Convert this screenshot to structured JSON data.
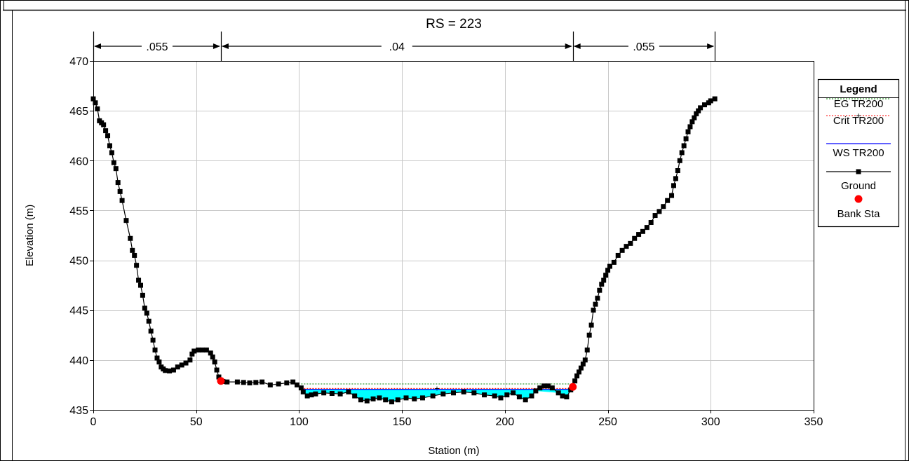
{
  "chart_data": {
    "type": "line",
    "title": "RS = 223",
    "xlabel": "Station (m)",
    "ylabel": "Elevation (m)",
    "xlim": [
      0,
      350
    ],
    "ylim": [
      435,
      470
    ],
    "xticks": [
      0,
      50,
      100,
      150,
      200,
      250,
      300,
      350
    ],
    "yticks": [
      435,
      440,
      445,
      450,
      455,
      460,
      465,
      470
    ],
    "grid": true,
    "legend": {
      "title": "Legend",
      "placement": "right",
      "entries": [
        {
          "label": "EG TR200",
          "color": "#008000",
          "style": "dotted"
        },
        {
          "label": "Crit TR200",
          "color": "#ff0000",
          "style": "dotted-cross"
        },
        {
          "label": "WS TR200",
          "color": "#0000ff",
          "style": "solid"
        },
        {
          "label": "Ground",
          "color": "#000000",
          "style": "line-square"
        },
        {
          "label": "Bank Sta",
          "color": "#ff0000",
          "style": "circle"
        }
      ]
    },
    "mannings_n": [
      {
        "label": ".055",
        "from": 0,
        "to": 62
      },
      {
        "label": ".04",
        "from": 62,
        "to": 233
      },
      {
        "label": ".055",
        "from": 233,
        "to": 302
      }
    ],
    "water_extent": [
      101,
      233
    ],
    "series": [
      {
        "name": "EG TR200",
        "values": [
          [
            101,
            437.6
          ],
          [
            233,
            437.6
          ]
        ]
      },
      {
        "name": "Crit TR200",
        "values": [
          [
            101,
            437.15
          ],
          [
            233,
            437.15
          ]
        ]
      },
      {
        "name": "WS TR200",
        "values": [
          [
            101,
            437.05
          ],
          [
            233,
            437.05
          ]
        ]
      },
      {
        "name": "Ground",
        "values": [
          [
            0,
            466.2
          ],
          [
            1,
            465.8
          ],
          [
            2,
            465.2
          ],
          [
            3,
            464.0
          ],
          [
            4,
            463.8
          ],
          [
            5,
            463.6
          ],
          [
            6,
            463.0
          ],
          [
            7,
            462.5
          ],
          [
            8,
            461.5
          ],
          [
            9,
            460.8
          ],
          [
            10,
            459.8
          ],
          [
            11,
            459.2
          ],
          [
            12,
            457.8
          ],
          [
            13,
            456.9
          ],
          [
            14,
            456.0
          ],
          [
            16,
            454.0
          ],
          [
            18,
            452.2
          ],
          [
            19,
            451.0
          ],
          [
            20,
            450.5
          ],
          [
            21,
            449.5
          ],
          [
            22,
            448.0
          ],
          [
            23,
            447.5
          ],
          [
            24,
            446.5
          ],
          [
            25,
            445.2
          ],
          [
            26,
            444.7
          ],
          [
            27,
            443.9
          ],
          [
            28,
            442.9
          ],
          [
            29,
            442.0
          ],
          [
            30,
            441.0
          ],
          [
            31,
            440.2
          ],
          [
            32,
            439.8
          ],
          [
            33,
            439.3
          ],
          [
            34,
            439.1
          ],
          [
            35,
            438.95
          ],
          [
            37,
            438.9
          ],
          [
            39,
            439.0
          ],
          [
            41,
            439.3
          ],
          [
            43,
            439.5
          ],
          [
            45,
            439.7
          ],
          [
            47,
            440.0
          ],
          [
            48,
            440.6
          ],
          [
            49,
            440.9
          ],
          [
            51,
            441.0
          ],
          [
            53,
            441.0
          ],
          [
            55,
            441.0
          ],
          [
            57,
            440.7
          ],
          [
            58,
            440.3
          ],
          [
            59,
            439.8
          ],
          [
            60,
            439.0
          ],
          [
            61,
            438.3
          ],
          [
            62,
            437.9
          ],
          [
            63,
            437.85
          ],
          [
            65,
            437.8
          ],
          [
            70,
            437.8
          ],
          [
            73,
            437.75
          ],
          [
            76,
            437.7
          ],
          [
            79,
            437.75
          ],
          [
            82,
            437.8
          ],
          [
            86,
            437.5
          ],
          [
            90,
            437.6
          ],
          [
            94,
            437.7
          ],
          [
            97,
            437.8
          ],
          [
            99,
            437.5
          ],
          [
            101,
            437.2
          ],
          [
            102,
            436.8
          ],
          [
            104,
            436.4
          ],
          [
            106,
            436.5
          ],
          [
            108,
            436.6
          ],
          [
            112,
            436.7
          ],
          [
            116,
            436.65
          ],
          [
            120,
            436.6
          ],
          [
            124,
            436.8
          ],
          [
            127,
            436.4
          ],
          [
            130,
            436.0
          ],
          [
            133,
            435.9
          ],
          [
            136,
            436.1
          ],
          [
            139,
            436.2
          ],
          [
            142,
            436.0
          ],
          [
            145,
            435.8
          ],
          [
            148,
            436.0
          ],
          [
            152,
            436.2
          ],
          [
            156,
            436.1
          ],
          [
            160,
            436.2
          ],
          [
            165,
            436.4
          ],
          [
            170,
            436.6
          ],
          [
            175,
            436.7
          ],
          [
            180,
            436.8
          ],
          [
            185,
            436.7
          ],
          [
            190,
            436.5
          ],
          [
            195,
            436.4
          ],
          [
            198,
            436.2
          ],
          [
            201,
            436.5
          ],
          [
            204,
            436.7
          ],
          [
            207,
            436.3
          ],
          [
            210,
            436.0
          ],
          [
            213,
            436.4
          ],
          [
            215,
            436.9
          ],
          [
            217,
            437.2
          ],
          [
            219,
            437.4
          ],
          [
            221,
            437.4
          ],
          [
            223,
            437.2
          ],
          [
            226,
            436.7
          ],
          [
            228,
            436.4
          ],
          [
            230,
            436.3
          ],
          [
            232,
            437.0
          ],
          [
            233,
            437.3
          ],
          [
            234,
            437.9
          ],
          [
            235,
            438.4
          ],
          [
            236,
            438.8
          ],
          [
            237,
            439.2
          ],
          [
            238,
            439.6
          ],
          [
            239,
            440.0
          ],
          [
            240,
            441.0
          ],
          [
            241,
            442.5
          ],
          [
            242,
            443.5
          ],
          [
            243,
            445.0
          ],
          [
            244,
            445.6
          ],
          [
            245,
            446.2
          ],
          [
            246,
            447.0
          ],
          [
            247,
            447.6
          ],
          [
            248,
            448.0
          ],
          [
            249,
            448.5
          ],
          [
            250,
            449.0
          ],
          [
            251,
            449.4
          ],
          [
            253,
            449.8
          ],
          [
            255,
            450.5
          ],
          [
            257,
            451.0
          ],
          [
            259,
            451.4
          ],
          [
            261,
            451.7
          ],
          [
            263,
            452.2
          ],
          [
            265,
            452.6
          ],
          [
            267,
            452.9
          ],
          [
            269,
            453.3
          ],
          [
            271,
            453.8
          ],
          [
            273,
            454.5
          ],
          [
            275,
            454.9
          ],
          [
            277,
            455.4
          ],
          [
            279,
            456.0
          ],
          [
            281,
            456.5
          ],
          [
            282,
            457.5
          ],
          [
            283,
            458.2
          ],
          [
            284,
            459.0
          ],
          [
            285,
            460.0
          ],
          [
            286,
            460.8
          ],
          [
            287,
            461.5
          ],
          [
            288,
            462.2
          ],
          [
            289,
            462.9
          ],
          [
            290,
            463.4
          ],
          [
            291,
            463.9
          ],
          [
            292,
            464.3
          ],
          [
            293,
            464.7
          ],
          [
            294,
            465.0
          ],
          [
            295,
            465.3
          ],
          [
            297,
            465.6
          ],
          [
            299,
            465.8
          ],
          [
            300,
            466.0
          ],
          [
            302,
            466.2
          ]
        ]
      },
      {
        "name": "Bank Sta",
        "values": [
          [
            62,
            437.9
          ],
          [
            233,
            437.3
          ]
        ]
      }
    ]
  }
}
